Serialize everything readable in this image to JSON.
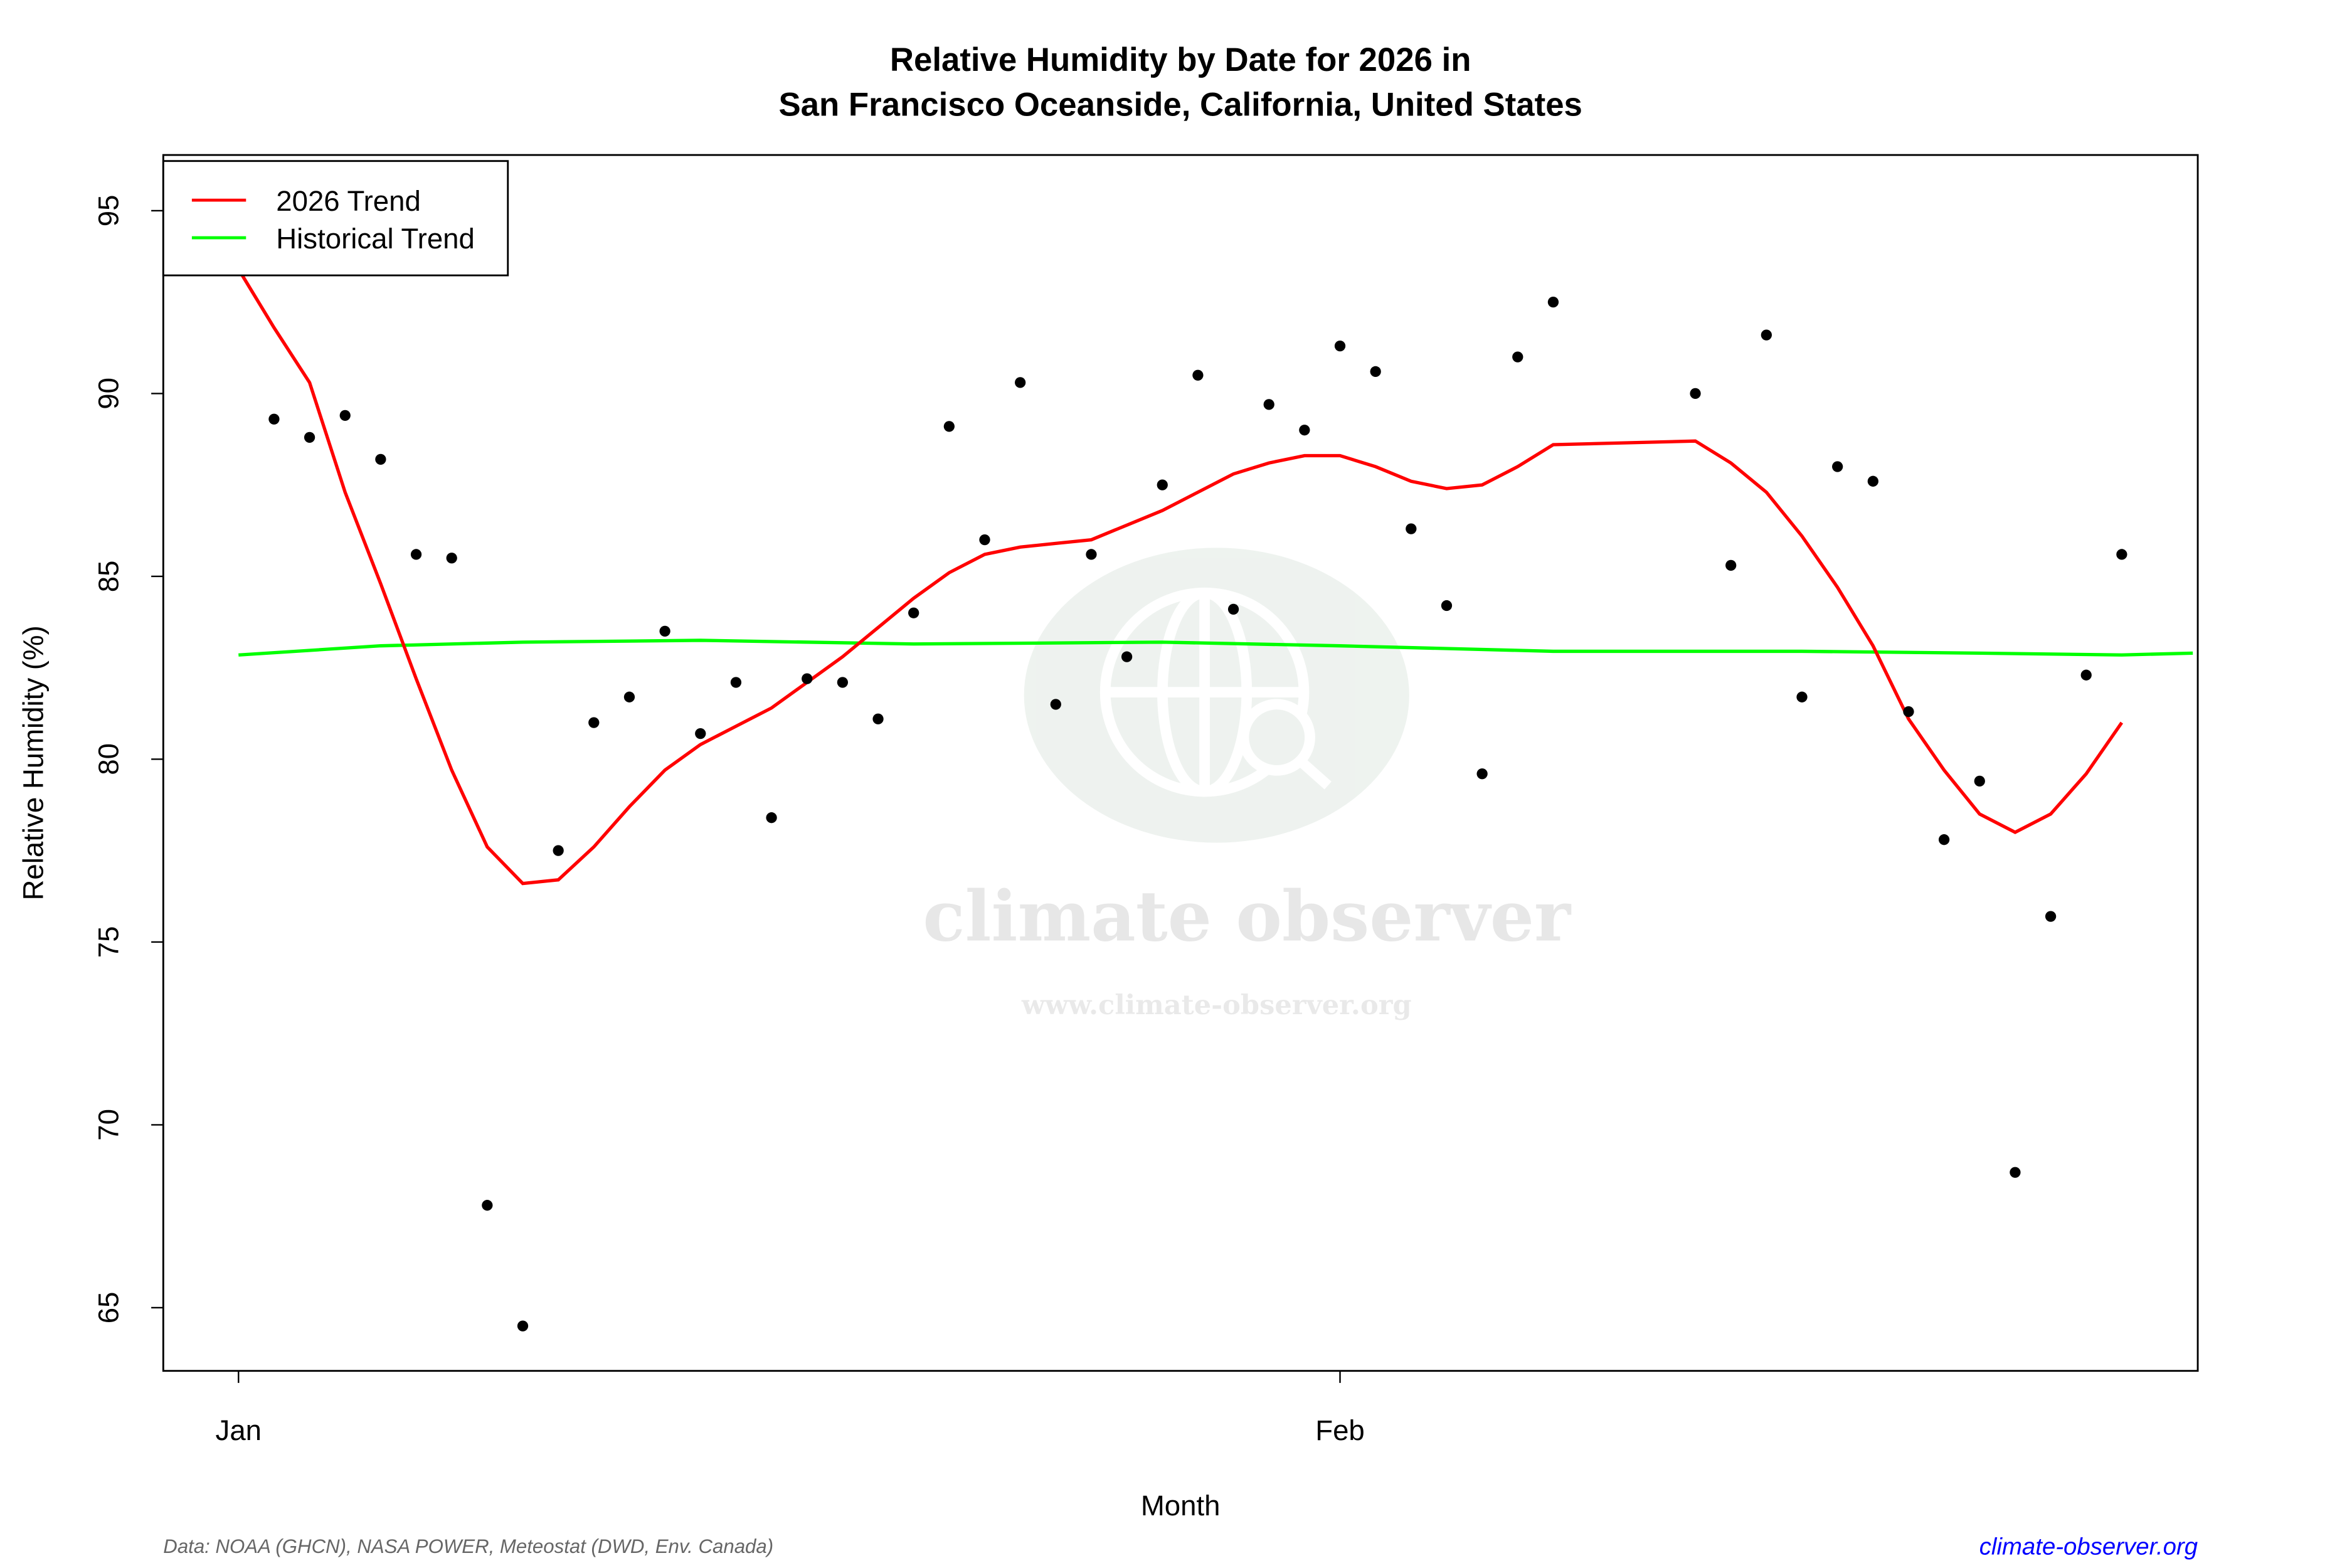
{
  "chart_data": {
    "type": "scatter",
    "title": "Relative Humidity by Date for 2026 in",
    "subtitle": "San Francisco Oceanside, California, United States",
    "xlabel": "Month",
    "ylabel": "Relative Humidity (%)",
    "ylim": [
      63.2,
      96.4
    ],
    "xlim": [
      "2025-12-29",
      "2026-02-25"
    ],
    "x_ticks": [
      {
        "date": "2026-01-01",
        "label": "Jan"
      },
      {
        "date": "2026-02-01",
        "label": "Feb"
      }
    ],
    "y_ticks": [
      65,
      70,
      75,
      80,
      85,
      90,
      95
    ],
    "grid": false,
    "legend": {
      "placement": "top-left",
      "entries": [
        {
          "name": "2026 Trend",
          "color": "#ff0000"
        },
        {
          "name": "Historical Trend",
          "color": "#00ff00"
        }
      ]
    },
    "points": {
      "color": "#000000",
      "x": [
        "2026-01-02",
        "2026-01-03",
        "2026-01-04",
        "2026-01-05",
        "2026-01-06",
        "2026-01-07",
        "2026-01-08",
        "2026-01-09",
        "2026-01-10",
        "2026-01-11",
        "2026-01-12",
        "2026-01-13",
        "2026-01-14",
        "2026-01-15",
        "2026-01-16",
        "2026-01-17",
        "2026-01-18",
        "2026-01-19",
        "2026-01-20",
        "2026-01-21",
        "2026-01-22",
        "2026-01-23",
        "2026-01-24",
        "2026-01-25",
        "2026-01-26",
        "2026-01-27",
        "2026-01-28",
        "2026-01-29",
        "2026-01-30",
        "2026-01-31",
        "2026-02-01",
        "2026-02-02",
        "2026-02-03",
        "2026-02-04",
        "2026-02-05",
        "2026-02-06",
        "2026-02-07",
        "2026-02-11",
        "2026-02-12",
        "2026-02-13",
        "2026-02-14",
        "2026-02-15",
        "2026-02-16",
        "2026-02-17",
        "2026-02-18",
        "2026-02-19",
        "2026-02-20",
        "2026-02-21",
        "2026-02-22",
        "2026-02-23"
      ],
      "y": [
        89.3,
        88.8,
        89.4,
        88.2,
        85.6,
        85.5,
        67.8,
        64.5,
        77.5,
        81.0,
        81.7,
        83.5,
        80.7,
        82.1,
        78.4,
        82.2,
        82.1,
        81.1,
        84.0,
        89.1,
        86.0,
        90.3,
        81.5,
        85.6,
        82.8,
        87.5,
        90.5,
        84.1,
        89.7,
        89.0,
        91.3,
        90.6,
        86.3,
        84.2,
        79.6,
        91.0,
        92.5,
        90.0,
        85.3,
        91.6,
        81.7,
        88.0,
        87.6,
        81.3,
        77.8,
        79.4,
        68.7,
        75.7,
        82.3,
        85.6
      ]
    },
    "series": [
      {
        "name": "2026 Trend",
        "color": "#ff0000",
        "x": [
          "2026-01-01",
          "2026-01-02",
          "2026-01-03",
          "2026-01-04",
          "2026-01-05",
          "2026-01-06",
          "2026-01-07",
          "2026-01-08",
          "2026-01-09",
          "2026-01-10",
          "2026-01-11",
          "2026-01-12",
          "2026-01-13",
          "2026-01-14",
          "2026-01-15",
          "2026-01-16",
          "2026-01-17",
          "2026-01-18",
          "2026-01-19",
          "2026-01-20",
          "2026-01-21",
          "2026-01-22",
          "2026-01-23",
          "2026-01-24",
          "2026-01-25",
          "2026-01-26",
          "2026-01-27",
          "2026-01-28",
          "2026-01-29",
          "2026-01-30",
          "2026-01-31",
          "2026-02-01",
          "2026-02-02",
          "2026-02-03",
          "2026-02-04",
          "2026-02-05",
          "2026-02-06",
          "2026-02-07",
          "2026-02-11",
          "2026-02-12",
          "2026-02-13",
          "2026-02-14",
          "2026-02-15",
          "2026-02-16",
          "2026-02-17",
          "2026-02-18",
          "2026-02-19",
          "2026-02-20",
          "2026-02-21",
          "2026-02-22",
          "2026-02-23"
        ],
        "y": [
          93.4,
          91.8,
          90.3,
          87.3,
          84.8,
          82.2,
          79.7,
          77.6,
          76.6,
          76.7,
          77.6,
          78.7,
          79.7,
          80.4,
          80.9,
          81.4,
          82.1,
          82.8,
          83.6,
          84.4,
          85.1,
          85.6,
          85.8,
          85.9,
          86.0,
          86.4,
          86.8,
          87.3,
          87.8,
          88.1,
          88.3,
          88.3,
          88.0,
          87.6,
          87.4,
          87.5,
          88.0,
          88.6,
          88.7,
          88.1,
          87.3,
          86.1,
          84.7,
          83.1,
          81.1,
          79.7,
          78.5,
          78.0,
          78.5,
          79.6,
          81.0
        ]
      },
      {
        "name": "Historical Trend",
        "color": "#00ff00",
        "x": [
          "2026-01-01",
          "2026-01-05",
          "2026-01-09",
          "2026-01-14",
          "2026-01-20",
          "2026-01-27",
          "2026-02-01",
          "2026-02-07",
          "2026-02-14",
          "2026-02-19",
          "2026-02-23",
          "2026-02-25"
        ],
        "y": [
          82.85,
          83.1,
          83.2,
          83.25,
          83.15,
          83.2,
          83.1,
          82.95,
          82.95,
          82.9,
          82.85,
          82.9
        ]
      }
    ]
  },
  "footer": {
    "source": "Data: NOAA (GHCN), NASA POWER, Meteostat (DWD, Env. Canada)",
    "site": "climate-observer.org",
    "site_color": "#0000ff"
  },
  "watermark": {
    "name": "climate observer",
    "url": "www.climate-observer.org",
    "icon": "globe-search-icon"
  }
}
